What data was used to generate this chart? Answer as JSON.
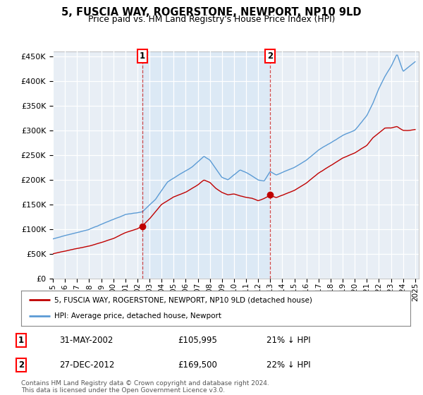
{
  "title": "5, FUSCIA WAY, ROGERSTONE, NEWPORT, NP10 9LD",
  "subtitle": "Price paid vs. HM Land Registry's House Price Index (HPI)",
  "ylim": [
    0,
    460000
  ],
  "yticks": [
    0,
    50000,
    100000,
    150000,
    200000,
    250000,
    300000,
    350000,
    400000,
    450000
  ],
  "xlim_start": 1995.0,
  "xlim_end": 2025.3,
  "legend_entry1": "5, FUSCIA WAY, ROGERSTONE, NEWPORT, NP10 9LD (detached house)",
  "legend_entry2": "HPI: Average price, detached house, Newport",
  "annotation1_label": "1",
  "annotation1_date": "31-MAY-2002",
  "annotation1_price": "£105,995",
  "annotation1_hpi": "21% ↓ HPI",
  "annotation2_label": "2",
  "annotation2_date": "27-DEC-2012",
  "annotation2_price": "£169,500",
  "annotation2_hpi": "22% ↓ HPI",
  "footer": "Contains HM Land Registry data © Crown copyright and database right 2024.\nThis data is licensed under the Open Government Licence v3.0.",
  "hpi_color": "#5b9bd5",
  "price_color": "#c00000",
  "transaction1_x": 2002.42,
  "transaction1_y": 105995,
  "transaction2_x": 2012.99,
  "transaction2_y": 169500,
  "shade_color": "#dce9f5",
  "plot_bg_color": "#e8eef5"
}
